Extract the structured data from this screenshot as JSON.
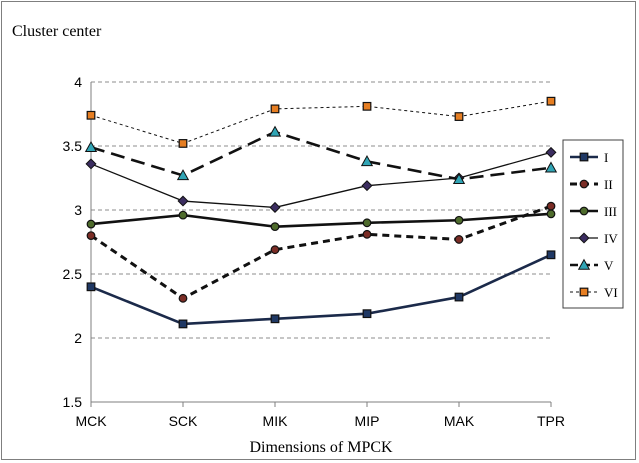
{
  "chart_data": {
    "type": "line",
    "title": "Cluster center",
    "xlabel": "Dimensions of MPCK",
    "ylabel": "",
    "categories": [
      "MCK",
      "SCK",
      "MIK",
      "MIP",
      "MAK",
      "TPR"
    ],
    "ylim": [
      1.5,
      4
    ],
    "yticks": [
      "1.5",
      "2",
      "2.5",
      "3",
      "3.5",
      "4"
    ],
    "grid": true,
    "legend_position": "right",
    "series": [
      {
        "name": "I",
        "values": [
          2.4,
          2.11,
          2.15,
          2.19,
          2.32,
          2.65
        ],
        "color": "#1b2a4a",
        "marker": "square",
        "marker_fill": "#1f3864",
        "dash": "",
        "width": 2.6
      },
      {
        "name": "II",
        "values": [
          2.8,
          2.31,
          2.69,
          2.81,
          2.77,
          3.03
        ],
        "color": "#111111",
        "marker": "circle",
        "marker_fill": "#7b2d26",
        "dash": "7,5",
        "width": 3
      },
      {
        "name": "III",
        "values": [
          2.89,
          2.96,
          2.87,
          2.9,
          2.92,
          2.97
        ],
        "color": "#111111",
        "marker": "circle",
        "marker_fill": "#4e6b2c",
        "dash": "",
        "width": 2.6
      },
      {
        "name": "IV",
        "values": [
          3.36,
          3.07,
          3.02,
          3.19,
          3.25,
          3.45
        ],
        "color": "#111111",
        "marker": "diamond",
        "marker_fill": "#3b2d60",
        "dash": "",
        "width": 1.3
      },
      {
        "name": "V",
        "values": [
          3.49,
          3.27,
          3.61,
          3.38,
          3.24,
          3.33
        ],
        "color": "#111111",
        "marker": "triangle",
        "marker_fill": "#31a5b5",
        "dash": "14,7",
        "width": 2.6
      },
      {
        "name": "VI",
        "values": [
          3.74,
          3.52,
          3.79,
          3.81,
          3.73,
          3.85
        ],
        "color": "#111111",
        "marker": "square",
        "marker_fill": "#e67e22",
        "dash": "3,3",
        "width": 1
      }
    ]
  }
}
